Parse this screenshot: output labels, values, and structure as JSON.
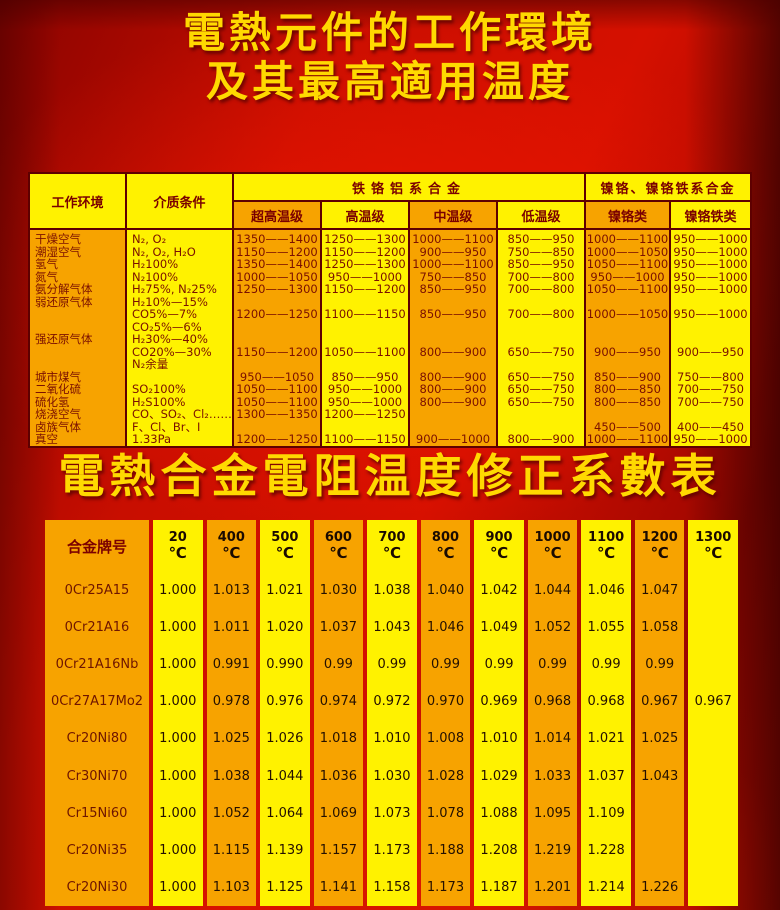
{
  "page": {
    "title_line1": "電熱元件的工作環境",
    "title_line2": "及其最高適用温度",
    "title2": "電熱合金電阻温度修正系數表"
  },
  "colors": {
    "yellow": "#FFF200",
    "orange": "#F7A300",
    "border": "#5E0000",
    "title": "#FFD900",
    "background_red": "#C80E00"
  },
  "table1": {
    "header": {
      "work_env": "工作环境",
      "medium": "介质条件",
      "fecral_group": "铁铬铝系合金",
      "nicr_group": "镍铬、镍铬铁系合金",
      "grades": [
        "超高温级",
        "高温级",
        "中温级",
        "低温级",
        "镍铬类",
        "镍铬铁类"
      ]
    },
    "lines": [
      [
        "干燥空气",
        "N₂, O₂",
        "1350——1400",
        "1250——1300",
        "1000——1100",
        "850——950",
        "1000——1100",
        "950——1000"
      ],
      [
        "潮湿空气",
        "N₂, O₂, H₂O",
        "1150——1200",
        "1150——1200",
        "900——950",
        "750——850",
        "1000——1050",
        "950——1000"
      ],
      [
        "氢气",
        "H₂100%",
        "1350——1400",
        "1250——1300",
        "1000——1100",
        "850——950",
        "1050——1100",
        "950——1000"
      ],
      [
        "氮气",
        "N₂100%",
        "1000——1050",
        "950——1000",
        "750——850",
        "700——800",
        "950——1000",
        "950——1000"
      ],
      [
        "氨分解气体",
        "H₂75%, N₂25%",
        "1250——1300",
        "1150——1200",
        "850——950",
        "700——800",
        "1050——1100",
        "950——1000"
      ],
      [
        "弱还原气体",
        "H₂10%—15%",
        "",
        "",
        "",
        "",
        "",
        ""
      ],
      [
        "",
        "CO5%—7%",
        "1200——1250",
        "1100——1150",
        "850——950",
        "700——800",
        "1000——1050",
        "950——1000"
      ],
      [
        "",
        "CO₂5%—6%",
        "",
        "",
        "",
        "",
        "",
        ""
      ],
      [
        "强还原气体",
        "H₂30%—40%",
        "",
        "",
        "",
        "",
        "",
        ""
      ],
      [
        "",
        "CO20%—30%",
        "1150——1200",
        "1050——1100",
        "800——900",
        "650——750",
        "900——950",
        "900——950"
      ],
      [
        "",
        "N₂余量",
        "",
        "",
        "",
        "",
        "",
        ""
      ],
      [
        "城市煤气",
        "",
        "950——1050",
        "850——950",
        "800——900",
        "650——750",
        "850——900",
        "750——800"
      ],
      [
        "二氧化硫",
        "SO₂100%",
        "1050——1100",
        "950——1000",
        "800——900",
        "650——750",
        "800——850",
        "700——750"
      ],
      [
        "硫化氢",
        "H₂S100%",
        "1050——1100",
        "950——1000",
        "800——900",
        "650——750",
        "800——850",
        "700——750"
      ],
      [
        "烧浇空气",
        "CO、SO₂、Cl₂……",
        "1300——1350",
        "1200——1250",
        "",
        "",
        "",
        ""
      ],
      [
        "卤族气体",
        "F、Cl、Br、I",
        "",
        "",
        "",
        "",
        "450——500",
        "400——450"
      ],
      [
        "真空",
        "1.33Pa",
        "1200——1250",
        "1100——1150",
        "900——1000",
        "800——900",
        "1000——1100",
        "950——1000"
      ]
    ]
  },
  "table2": {
    "header": {
      "alloy_col": "合金牌号",
      "temps": [
        "20",
        "400",
        "500",
        "600",
        "700",
        "800",
        "900",
        "1000",
        "1100",
        "1200",
        "1300"
      ],
      "unit": "℃"
    },
    "rows": [
      {
        "alloy": "0Cr25A15",
        "values": [
          "1.000",
          "1.013",
          "1.021",
          "1.030",
          "1.038",
          "1.040",
          "1.042",
          "1.044",
          "1.046",
          "1.047",
          ""
        ]
      },
      {
        "alloy": "0Cr21A16",
        "values": [
          "1.000",
          "1.011",
          "1.020",
          "1.037",
          "1.043",
          "1.046",
          "1.049",
          "1.052",
          "1.055",
          "1.058",
          ""
        ]
      },
      {
        "alloy": "0Cr21A16Nb",
        "values": [
          "1.000",
          "0.991",
          "0.990",
          "0.99",
          "0.99",
          "0.99",
          "0.99",
          "0.99",
          "0.99",
          "0.99",
          ""
        ]
      },
      {
        "alloy": "0Cr27A17Mo2",
        "values": [
          "1.000",
          "0.978",
          "0.976",
          "0.974",
          "0.972",
          "0.970",
          "0.969",
          "0.968",
          "0.968",
          "0.967",
          "0.967"
        ]
      },
      {
        "alloy": "Cr20Ni80",
        "values": [
          "1.000",
          "1.025",
          "1.026",
          "1.018",
          "1.010",
          "1.008",
          "1.010",
          "1.014",
          "1.021",
          "1.025",
          ""
        ]
      },
      {
        "alloy": "Cr30Ni70",
        "values": [
          "1.000",
          "1.038",
          "1.044",
          "1.036",
          "1.030",
          "1.028",
          "1.029",
          "1.033",
          "1.037",
          "1.043",
          ""
        ]
      },
      {
        "alloy": "Cr15Ni60",
        "values": [
          "1.000",
          "1.052",
          "1.064",
          "1.069",
          "1.073",
          "1.078",
          "1.088",
          "1.095",
          "1.109",
          "",
          ""
        ]
      },
      {
        "alloy": "Cr20Ni35",
        "values": [
          "1.000",
          "1.115",
          "1.139",
          "1.157",
          "1.173",
          "1.188",
          "1.208",
          "1.219",
          "1.228",
          "",
          ""
        ]
      },
      {
        "alloy": "Cr20Ni30",
        "values": [
          "1.000",
          "1.103",
          "1.125",
          "1.141",
          "1.158",
          "1.173",
          "1.187",
          "1.201",
          "1.214",
          "1.226",
          ""
        ]
      }
    ]
  }
}
